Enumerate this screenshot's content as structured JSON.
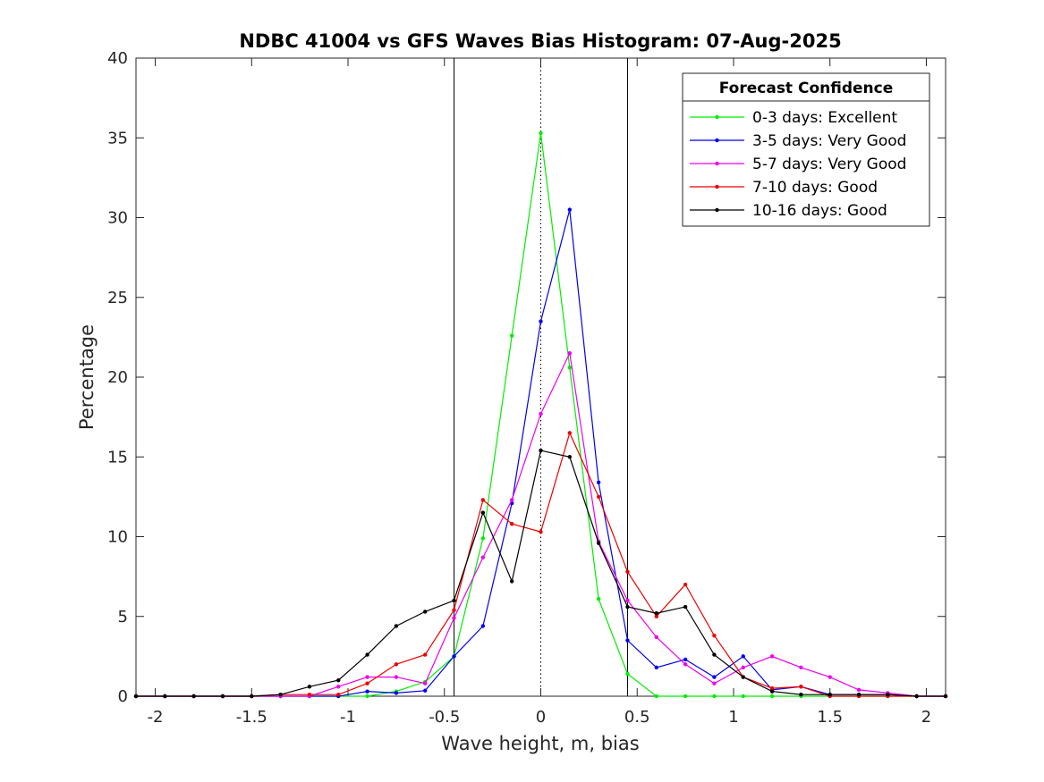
{
  "chart_data": {
    "type": "line",
    "title": "NDBC 41004 vs GFS Waves Bias Histogram: 07-Aug-2025",
    "xlabel": "Wave height, m, bias",
    "ylabel": "Percentage",
    "xlim": [
      -2.1,
      2.1
    ],
    "ylim": [
      0,
      40
    ],
    "xticks": [
      -2,
      -1.5,
      -1,
      -0.5,
      0,
      0.5,
      1,
      1.5,
      2
    ],
    "xtick_labels": [
      "-2",
      "-1.5",
      "-1",
      "-0.5",
      "0",
      "0.5",
      "1",
      "1.5",
      "2"
    ],
    "yticks": [
      0,
      5,
      10,
      15,
      20,
      25,
      30,
      35,
      40
    ],
    "ytick_labels": [
      "0",
      "5",
      "10",
      "15",
      "20",
      "25",
      "30",
      "35",
      "40"
    ],
    "grid": false,
    "legend_title": "Forecast Confidence",
    "legend_position": "top-right",
    "vertical_lines": [
      {
        "x": -0.45,
        "style": "solid"
      },
      {
        "x": 0,
        "style": "dotted"
      },
      {
        "x": 0.45,
        "style": "solid"
      }
    ],
    "x": [
      -2.1,
      -1.95,
      -1.8,
      -1.65,
      -1.5,
      -1.35,
      -1.2,
      -1.05,
      -0.9,
      -0.75,
      -0.6,
      -0.45,
      -0.3,
      -0.15,
      0,
      0.15,
      0.3,
      0.45,
      0.6,
      0.75,
      0.9,
      1.05,
      1.2,
      1.35,
      1.5,
      1.65,
      1.8,
      1.95,
      2.1
    ],
    "series": [
      {
        "name": "0-3 days: Excellent",
        "color": "#00ee00",
        "values": [
          0,
          0,
          0,
          0,
          0,
          0,
          0,
          0,
          0,
          0.3,
          0.9,
          2.5,
          9.9,
          22.6,
          35.3,
          20.6,
          6.1,
          1.4,
          0,
          0,
          0,
          0,
          0,
          0,
          0,
          0,
          0,
          0,
          0
        ]
      },
      {
        "name": "3-5 days: Very Good",
        "color": "#0000ee",
        "values": [
          0,
          0,
          0,
          0,
          0,
          0,
          0,
          0,
          0.3,
          0.2,
          0.35,
          2.5,
          4.4,
          12.1,
          23.5,
          30.5,
          13.4,
          3.5,
          1.8,
          2.3,
          1.2,
          2.5,
          0.4,
          0.6,
          0.1,
          0.1,
          0.1,
          0,
          0
        ]
      },
      {
        "name": "5-7 days: Very Good",
        "color": "#ee00ee",
        "values": [
          0,
          0,
          0,
          0,
          0,
          0,
          0,
          0.6,
          1.2,
          1.2,
          0.8,
          4.9,
          8.7,
          12.3,
          17.7,
          21.5,
          9.7,
          6.0,
          3.7,
          2.0,
          0.8,
          1.8,
          2.5,
          1.8,
          1.2,
          0.4,
          0.2,
          0,
          0
        ]
      },
      {
        "name": "7-10 days: Good",
        "color": "#ee0000",
        "values": [
          0,
          0,
          0,
          0,
          0,
          0.1,
          0.1,
          0.1,
          0.8,
          2.0,
          2.6,
          5.4,
          12.3,
          10.8,
          10.3,
          16.5,
          12.5,
          7.8,
          5.0,
          7.0,
          3.8,
          1.2,
          0.5,
          0.6,
          0,
          0,
          0,
          0,
          0
        ]
      },
      {
        "name": "10-16 days: Good",
        "color": "#000000",
        "values": [
          0,
          0,
          0,
          0,
          0,
          0.1,
          0.6,
          1.0,
          2.6,
          4.4,
          5.3,
          6.0,
          11.5,
          7.2,
          15.4,
          15.0,
          9.6,
          5.6,
          5.2,
          5.6,
          2.6,
          1.2,
          0.3,
          0.1,
          0.1,
          0.1,
          0.1,
          0,
          0
        ]
      }
    ]
  }
}
